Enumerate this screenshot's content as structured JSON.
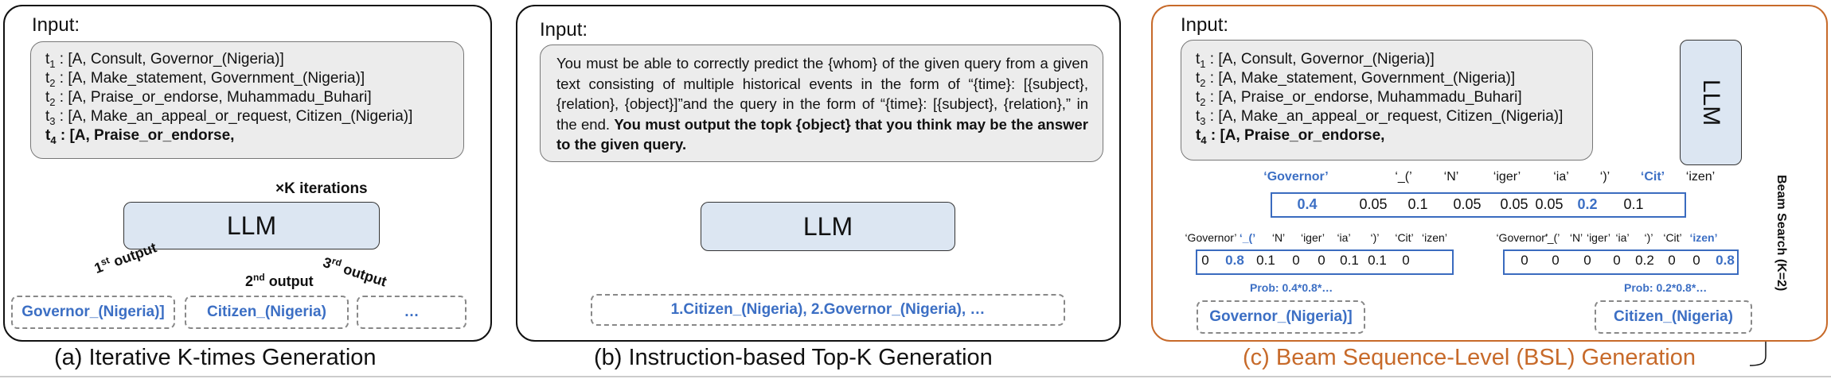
{
  "common": {
    "input_label": "Input:",
    "t_prefix": "t",
    "llm_label": "LLM",
    "quad_lines": [
      {
        "sub": "1",
        "text": " : [A, Consult, Governor_(Nigeria)]",
        "bold": false
      },
      {
        "sub": "2",
        "text": " : [A, Make_statement, Government_(Nigeria)]",
        "bold": false
      },
      {
        "sub": "2",
        "text": " : [A, Praise_or_endorse, Muhammadu_Buhari]",
        "bold": false
      },
      {
        "sub": "3",
        "text": " : [A, Make_an_appeal_or_request, Citizen_(Nigeria)]",
        "bold": false
      },
      {
        "sub": "4",
        "text": " : [A, Praise_or_endorse,",
        "bold": true
      }
    ]
  },
  "panel_a": {
    "caption": "(a) Iterative K-times Generation",
    "iterations_label": "×K iterations",
    "output_labels": [
      {
        "num": "1",
        "sup": "st",
        "word": " output"
      },
      {
        "num": "2",
        "sup": "nd",
        "word": " output"
      },
      {
        "num": "3",
        "sup": "rd",
        "word": " output"
      }
    ],
    "outputs": [
      "Governor_(Nigeria)]",
      "Citizen_(Nigeria)",
      "…"
    ]
  },
  "panel_b": {
    "caption": "(b) Instruction-based Top-K Generation",
    "instruction_plain": "You must be able to correctly predict the {whom} of the given query from a given text consisting of multiple historical events in the form of “{time}: [{subject}, {relation}, {object}]”and the query in the form of “{time}: [{subject}, {relation},” in the end. ",
    "instruction_bold": "You must output the topk {object} that you think may be the answer to the given query.",
    "output": "1.Citizen_(Nigeria), 2.Governor_(Nigeria), …"
  },
  "panel_c": {
    "caption": "(c) Beam Sequence-Level (BSL) Generation",
    "beam_label": "Beam Search (K=2)",
    "top_tokens": [
      "‘Governor’",
      "‘_(’",
      "‘N’",
      "‘iger’",
      "‘ia’",
      "‘)’",
      "‘Cit’",
      "‘izen’"
    ],
    "top_probs": [
      "0.4",
      "0.05",
      "0.1",
      "0.05",
      "0.05",
      "0.05",
      "0.2",
      "0.1"
    ],
    "left_tokens": [
      "‘Governor’",
      "‘_(’",
      "‘N’",
      "‘iger’",
      "‘ia’",
      "‘)’",
      "‘Cit’",
      "‘izen’"
    ],
    "left_probs": [
      "0",
      "0.8",
      "0.1",
      "0",
      "0",
      "0.1",
      "0.1",
      "0"
    ],
    "right_tokens": [
      "‘Governor’",
      "‘_(’",
      "‘N’",
      "‘iger’",
      "‘ia’",
      "‘)’",
      "‘Cit’",
      "‘izen’"
    ],
    "right_probs": [
      "0",
      "0",
      "0",
      "0",
      "0.2",
      "0",
      "0",
      "0.8"
    ],
    "left_prob": "Prob: 0.4*0.8*…",
    "right_prob": "Prob: 0.2*0.8*…",
    "outputs": [
      "Governor_(Nigeria)]",
      "Citizen_(Nigeria)"
    ]
  },
  "colors": {
    "accent_blue": "#3c6fc4",
    "llm_fill": "#dce6f2",
    "panel_c_border": "#c76a2a",
    "loop_arrow": "#e0b32a"
  }
}
